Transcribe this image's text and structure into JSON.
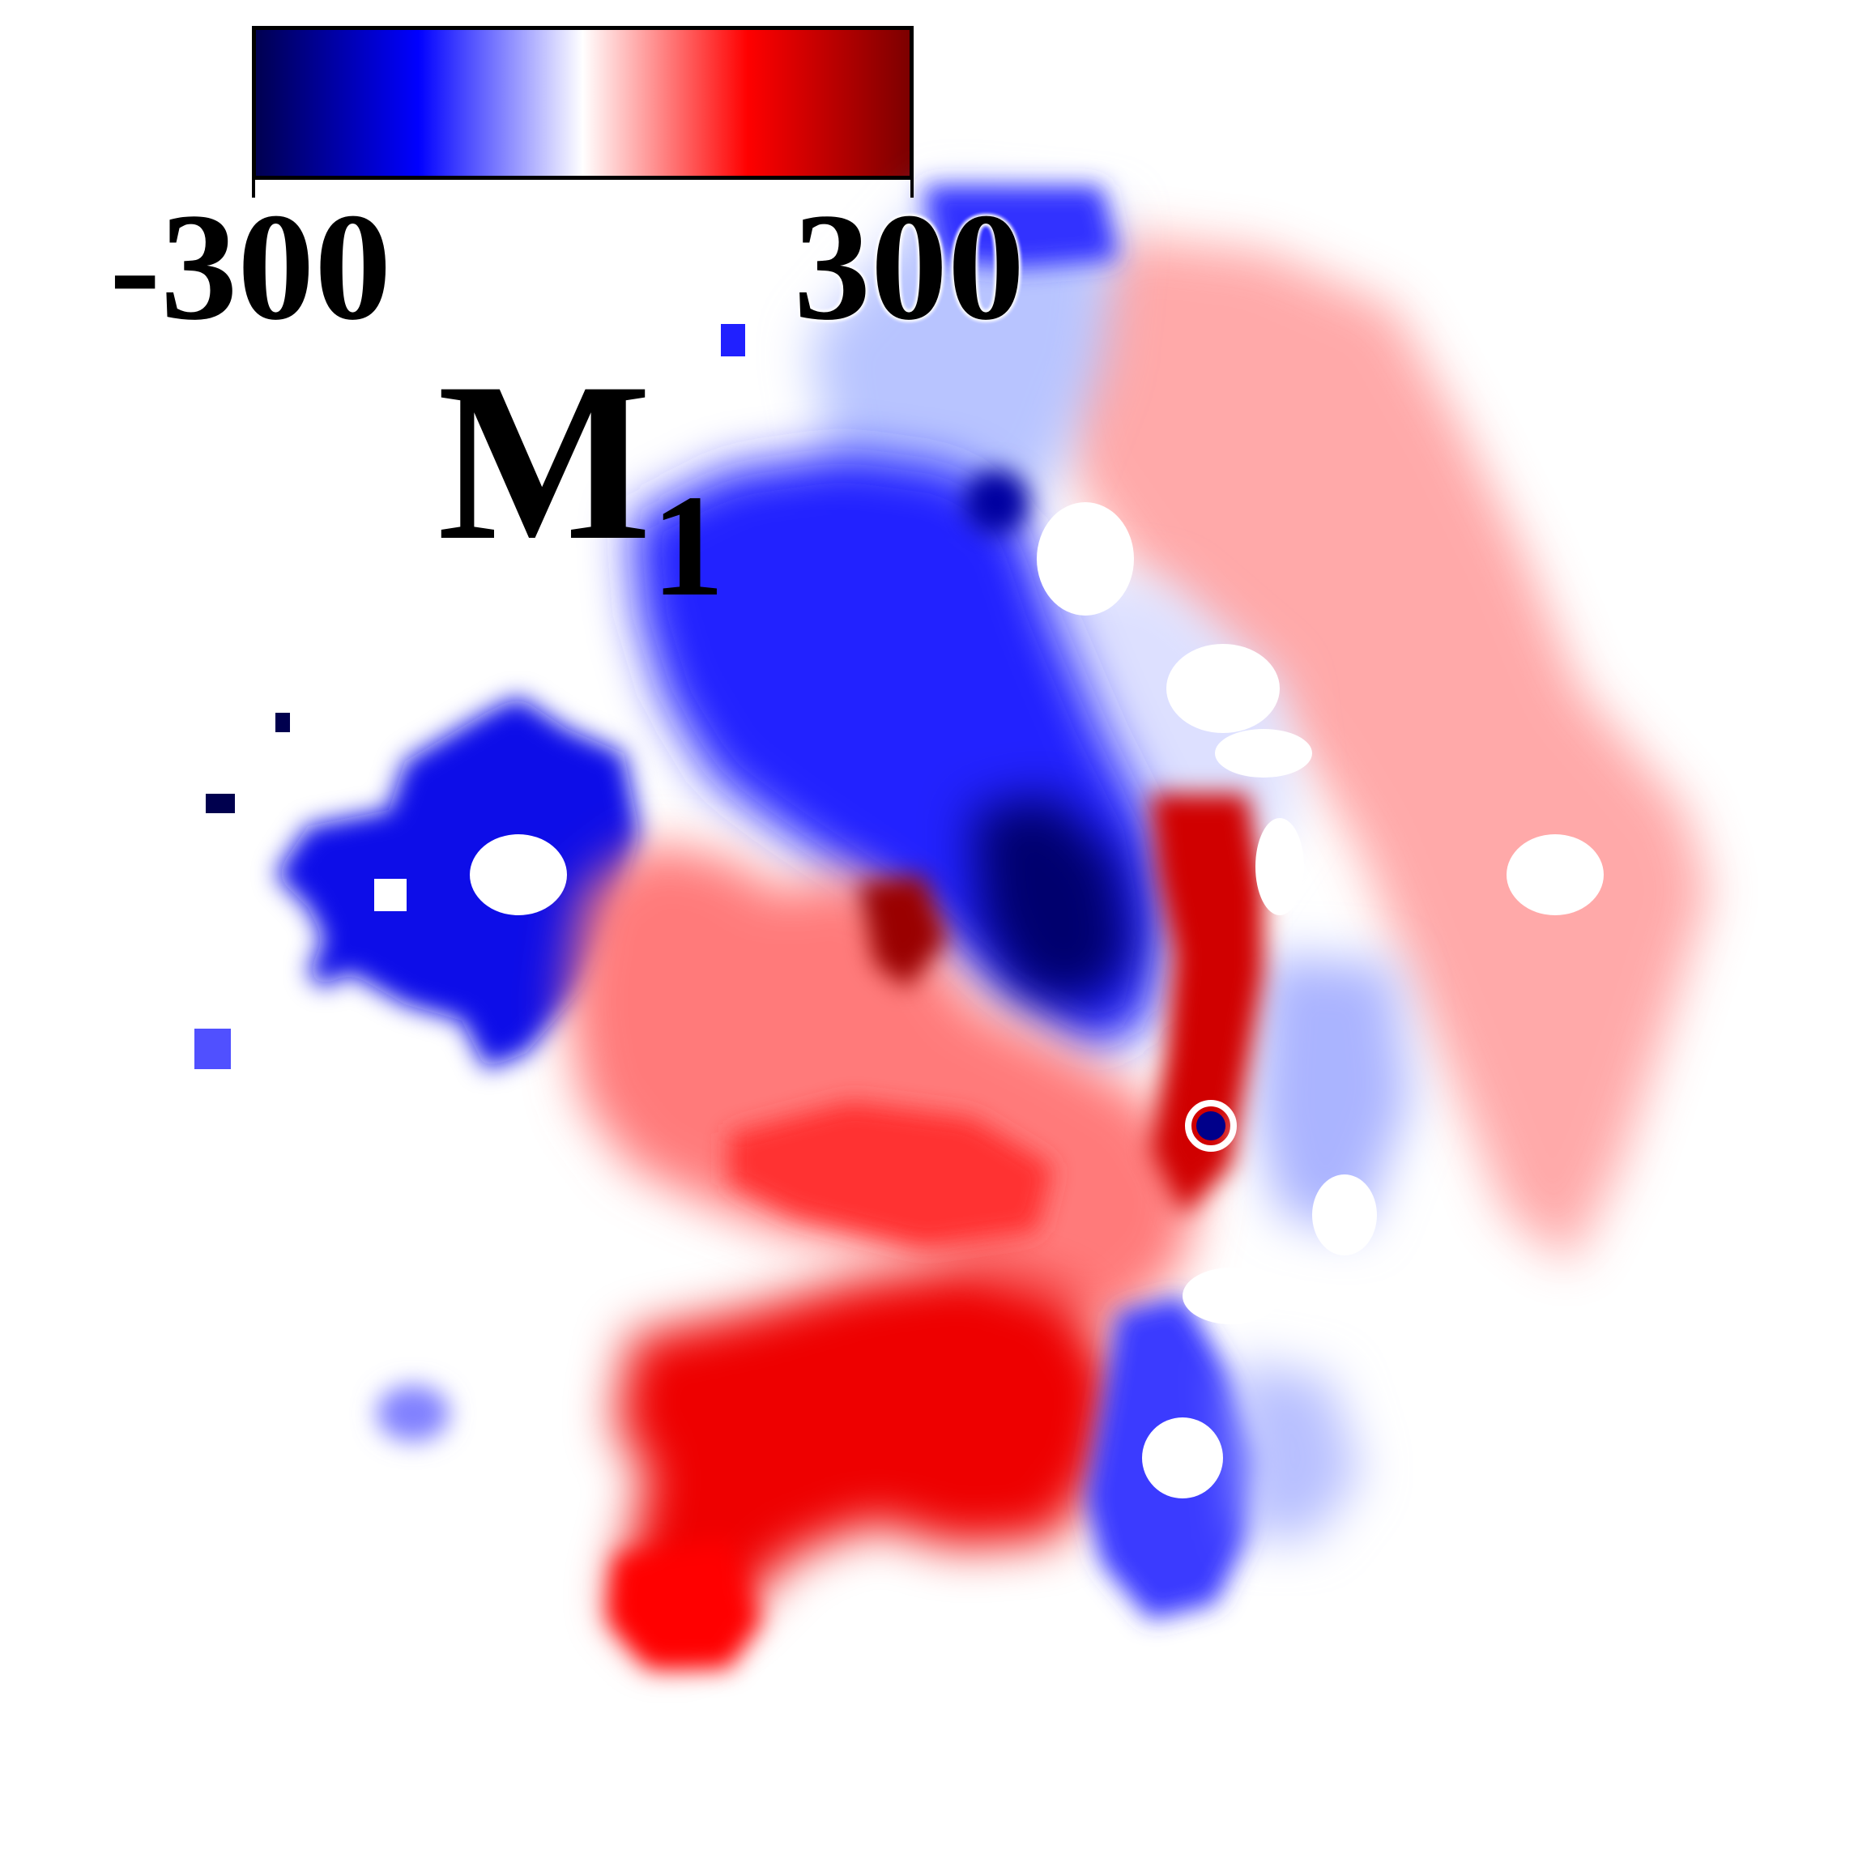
{
  "colorbar": {
    "min_label": "-300",
    "max_label": "300",
    "min": -300,
    "max": 300,
    "stops": [
      "#00004e",
      "#0000ff",
      "#ffffff",
      "#ff0000",
      "#7a0000"
    ]
  },
  "title": {
    "main": "M",
    "sub": "1"
  }
}
